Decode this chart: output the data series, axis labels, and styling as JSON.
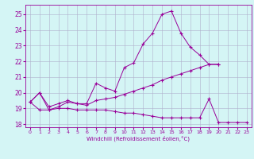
{
  "title": "",
  "xlabel": "Windchill (Refroidissement éolien,°C)",
  "background_color": "#d4f5f5",
  "grid_color": "#b0b0cc",
  "line_color": "#990099",
  "xlim": [
    -0.5,
    23.5
  ],
  "ylim": [
    17.8,
    25.6
  ],
  "yticks": [
    18,
    19,
    20,
    21,
    22,
    23,
    24,
    25
  ],
  "xticks": [
    0,
    1,
    2,
    3,
    4,
    5,
    6,
    7,
    8,
    9,
    10,
    11,
    12,
    13,
    14,
    15,
    16,
    17,
    18,
    19,
    20,
    21,
    22,
    23
  ],
  "lines": [
    {
      "x": [
        0,
        1,
        2,
        3,
        4,
        5,
        6,
        7,
        8,
        9,
        10,
        11,
        12,
        13,
        14,
        15,
        16,
        17,
        18,
        19,
        20
      ],
      "y": [
        19.4,
        20.0,
        18.9,
        19.1,
        19.4,
        19.3,
        19.3,
        20.6,
        20.3,
        20.1,
        21.6,
        21.9,
        23.1,
        23.8,
        25.0,
        25.2,
        23.8,
        22.9,
        22.4,
        21.8,
        21.8
      ]
    },
    {
      "x": [
        0,
        1,
        2,
        3,
        4,
        5,
        6,
        7,
        8,
        9,
        10,
        11,
        12,
        13,
        14,
        15,
        16,
        17,
        18,
        19,
        20
      ],
      "y": [
        19.4,
        20.0,
        19.1,
        19.3,
        19.5,
        19.3,
        19.2,
        19.5,
        19.6,
        19.7,
        19.9,
        20.1,
        20.3,
        20.5,
        20.8,
        21.0,
        21.2,
        21.4,
        21.6,
        21.8,
        21.8
      ]
    },
    {
      "x": [
        0,
        1,
        2,
        3,
        4,
        5,
        6,
        7,
        8,
        9,
        10,
        11,
        12,
        13,
        14,
        15,
        16,
        17,
        18,
        19,
        20,
        21,
        22,
        23
      ],
      "y": [
        19.4,
        18.9,
        18.9,
        19.0,
        19.0,
        18.9,
        18.9,
        18.9,
        18.9,
        18.8,
        18.7,
        18.7,
        18.6,
        18.5,
        18.4,
        18.4,
        18.4,
        18.4,
        18.4,
        19.6,
        18.1,
        18.1,
        18.1,
        18.1
      ]
    }
  ]
}
